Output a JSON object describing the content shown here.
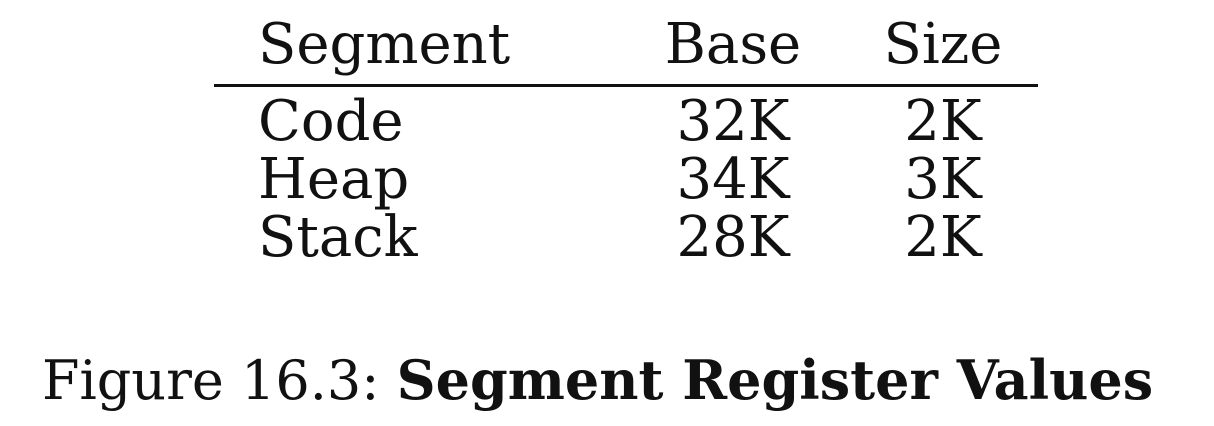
{
  "table": {
    "headers": {
      "segment": "Segment",
      "base": "Base",
      "size": "Size"
    },
    "rows": [
      {
        "segment": "Code",
        "base": "32K",
        "size": "2K"
      },
      {
        "segment": "Heap",
        "base": "34K",
        "size": "3K"
      },
      {
        "segment": "Stack",
        "base": "28K",
        "size": "2K"
      }
    ]
  },
  "caption": {
    "label": "Figure 16.3:",
    "title": "Segment Register Values"
  }
}
